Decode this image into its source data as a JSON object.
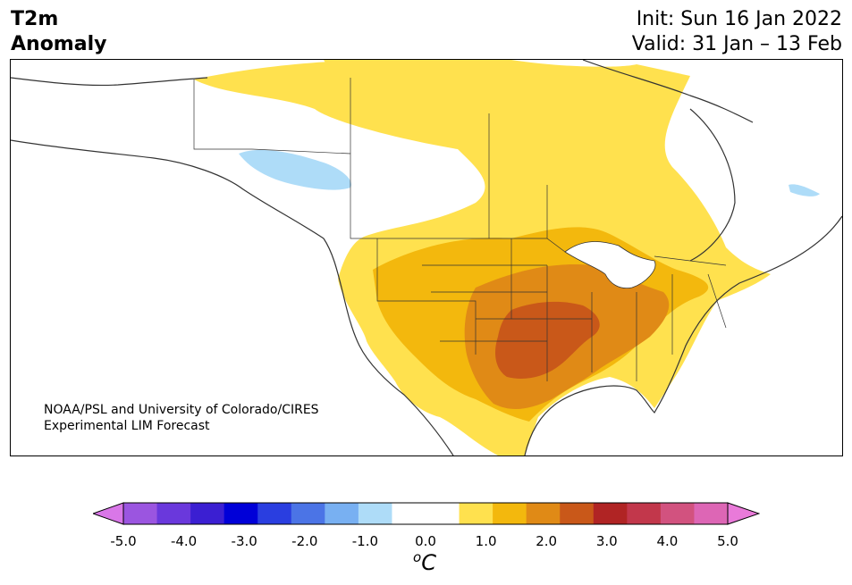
{
  "header": {
    "title_line1": "T2m",
    "title_line2": "Anomaly",
    "init": "Init: Sun 16 Jan 2022",
    "valid": "Valid: 31 Jan – 13 Feb"
  },
  "credit": {
    "line1": "NOAA/PSL and University of Colorado/CIRES",
    "line2": "Experimental LIM Forecast"
  },
  "colorbar": {
    "unit_base": "C",
    "unit_super": "o",
    "ticks": [
      "-5.0",
      "-4.0",
      "-3.0",
      "-2.0",
      "-1.0",
      "0.0",
      "1.0",
      "2.0",
      "3.0",
      "4.0",
      "5.0"
    ],
    "under_color": "#d977e8",
    "over_color": "#e97ad9",
    "colors": [
      "#d977e8",
      "#9b55e0",
      "#6a38dc",
      "#3b1fd2",
      "#0000d8",
      "#2a3ee0",
      "#4b74e6",
      "#78b0f2",
      "#aedcf8",
      "#ffffff",
      "#ffffff",
      "#ffe14e",
      "#f3b80d",
      "#e08a16",
      "#c95819",
      "#b02424",
      "#c2374b",
      "#d2527f",
      "#dd66b5",
      "#e97ad9"
    ]
  },
  "map": {
    "region": "North America",
    "palette": {
      "cool_light": "#aedcf8",
      "warm_1": "#ffe14e",
      "warm_2": "#f3b80d",
      "warm_3": "#e08a16",
      "warm_4": "#c95819",
      "lakes": "#ffffff",
      "border": "#333333"
    }
  }
}
